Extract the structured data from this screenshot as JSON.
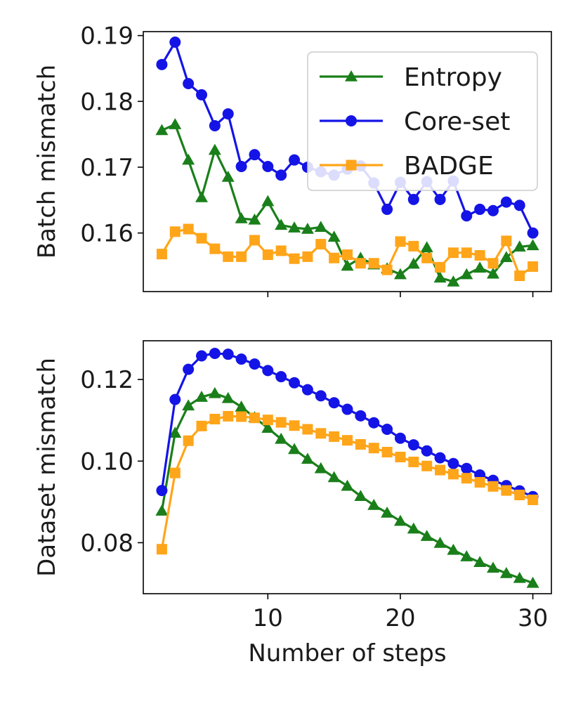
{
  "chart_data": [
    {
      "type": "line",
      "title": "",
      "xlabel": "",
      "ylabel": "Batch mismatch",
      "xlim": [
        0.6,
        31.4
      ],
      "ylim": [
        0.1511,
        0.1906
      ],
      "xticks": [
        10,
        20,
        30
      ],
      "xtick_labels_shown": false,
      "yticks": [
        0.16,
        0.17,
        0.18,
        0.19
      ],
      "ytick_labels": [
        "0.16",
        "0.17",
        "0.18",
        "0.19"
      ],
      "grid": false,
      "legend_position": "top-right",
      "x": [
        2,
        3,
        4,
        5,
        6,
        7,
        8,
        9,
        10,
        11,
        12,
        13,
        14,
        15,
        16,
        17,
        18,
        19,
        20,
        21,
        22,
        23,
        24,
        25,
        26,
        27,
        28,
        29,
        30
      ],
      "series": [
        {
          "name": "Entropy",
          "color": "#1a7f1a",
          "marker": "triangle",
          "values": [
            0.1756,
            0.1765,
            0.1711,
            0.1654,
            0.1726,
            0.1685,
            0.1622,
            0.162,
            0.1648,
            0.1612,
            0.1608,
            0.1606,
            0.1609,
            0.1594,
            0.155,
            0.1562,
            0.1552,
            0.1546,
            0.1537,
            0.1553,
            0.1578,
            0.1532,
            0.1526,
            0.1537,
            0.1547,
            0.1538,
            0.1563,
            0.1579,
            0.1581
          ]
        },
        {
          "name": "Core-set",
          "color": "#1414e6",
          "marker": "circle",
          "values": [
            0.1856,
            0.189,
            0.1827,
            0.181,
            0.1763,
            0.1781,
            0.1701,
            0.1719,
            0.1701,
            0.1688,
            0.1711,
            0.17,
            0.1693,
            0.1688,
            0.1697,
            0.1702,
            0.1676,
            0.1636,
            0.1677,
            0.1651,
            0.1678,
            0.1651,
            0.1679,
            0.1626,
            0.1636,
            0.1634,
            0.1647,
            0.1642,
            0.16
          ]
        },
        {
          "name": "BADGE",
          "color": "#ffa51a",
          "marker": "square",
          "values": [
            0.1568,
            0.1602,
            0.1606,
            0.1592,
            0.1576,
            0.1564,
            0.1564,
            0.1589,
            0.1567,
            0.1573,
            0.1561,
            0.1564,
            0.1583,
            0.1562,
            0.1567,
            0.1554,
            0.1554,
            0.1544,
            0.1587,
            0.158,
            0.1562,
            0.1548,
            0.157,
            0.157,
            0.1566,
            0.1554,
            0.1588,
            0.1535,
            0.1549
          ]
        }
      ]
    },
    {
      "type": "line",
      "title": "",
      "xlabel": "Number of steps",
      "ylabel": "Dataset mismatch",
      "xlim": [
        0.6,
        31.4
      ],
      "ylim": [
        0.0675,
        0.1295
      ],
      "xticks": [
        10,
        20,
        30
      ],
      "xtick_labels": [
        "10",
        "20",
        "30"
      ],
      "yticks": [
        0.08,
        0.1,
        0.12
      ],
      "ytick_labels": [
        "0.08",
        "0.10",
        "0.12"
      ],
      "grid": false,
      "x": [
        2,
        3,
        4,
        5,
        6,
        7,
        8,
        9,
        10,
        11,
        12,
        13,
        14,
        15,
        16,
        17,
        18,
        19,
        20,
        21,
        22,
        23,
        24,
        25,
        26,
        27,
        28,
        29,
        30
      ],
      "series": [
        {
          "name": "Entropy",
          "color": "#1a7f1a",
          "marker": "triangle",
          "values": [
            0.0878,
            0.1069,
            0.1136,
            0.1157,
            0.1166,
            0.1154,
            0.1133,
            0.1107,
            0.1081,
            0.1054,
            0.1029,
            0.1005,
            0.0982,
            0.096,
            0.0939,
            0.0914,
            0.0892,
            0.0873,
            0.0853,
            0.0834,
            0.0816,
            0.0799,
            0.0782,
            0.0766,
            0.0752,
            0.0738,
            0.0725,
            0.0713,
            0.0701
          ]
        },
        {
          "name": "Core-set",
          "color": "#1414e6",
          "marker": "circle",
          "values": [
            0.0928,
            0.1151,
            0.1225,
            0.1258,
            0.1264,
            0.1262,
            0.125,
            0.1238,
            0.1222,
            0.1207,
            0.1192,
            0.1175,
            0.116,
            0.1143,
            0.1127,
            0.1111,
            0.1094,
            0.1078,
            0.1056,
            0.104,
            0.1025,
            0.1008,
            0.0994,
            0.0982,
            0.0966,
            0.0953,
            0.094,
            0.0927,
            0.0913
          ]
        },
        {
          "name": "BADGE",
          "color": "#ffa51a",
          "marker": "square",
          "values": [
            0.0784,
            0.0971,
            0.105,
            0.1086,
            0.1103,
            0.111,
            0.1109,
            0.1106,
            0.1101,
            0.1095,
            0.1087,
            0.1078,
            0.1068,
            0.106,
            0.1051,
            0.1041,
            0.1032,
            0.1022,
            0.101,
            0.0998,
            0.0988,
            0.0978,
            0.0968,
            0.0958,
            0.0948,
            0.0938,
            0.0928,
            0.0917,
            0.0905
          ]
        }
      ]
    }
  ]
}
